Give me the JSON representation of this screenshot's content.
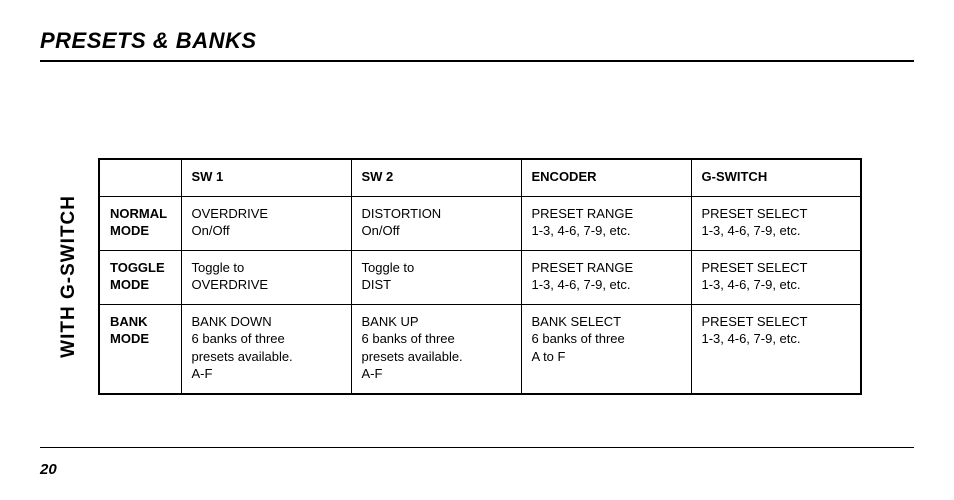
{
  "page": {
    "title": "PRESETS & BANKS",
    "number": "20",
    "side_label": "WITH G-SWITCH"
  },
  "table": {
    "columns": [
      "SW 1",
      "SW 2",
      "ENCODER",
      "G-SWITCH"
    ],
    "rows": [
      {
        "header": "NORMAL MODE",
        "cells": [
          [
            "OVERDRIVE",
            "On/Off"
          ],
          [
            "DISTORTION",
            "On/Off"
          ],
          [
            "PRESET RANGE",
            "1-3, 4-6, 7-9, etc."
          ],
          [
            "PRESET SELECT",
            "1-3, 4-6, 7-9, etc."
          ]
        ]
      },
      {
        "header": "TOGGLE MODE",
        "cells": [
          [
            "Toggle to",
            "OVERDRIVE"
          ],
          [
            "Toggle to",
            "DIST"
          ],
          [
            "PRESET RANGE",
            "1-3, 4-6, 7-9, etc."
          ],
          [
            "PRESET SELECT",
            "1-3, 4-6, 7-9, etc."
          ]
        ]
      },
      {
        "header": "BANK MODE",
        "cells": [
          [
            "BANK DOWN",
            "6 banks of three",
            "presets available.",
            "A-F"
          ],
          [
            "BANK UP",
            "6 banks of three",
            "presets available.",
            "A-F"
          ],
          [
            "BANK SELECT",
            "6 banks of three",
            "A to F"
          ],
          [
            "PRESET SELECT",
            "1-3, 4-6, 7-9, etc."
          ]
        ]
      }
    ]
  }
}
